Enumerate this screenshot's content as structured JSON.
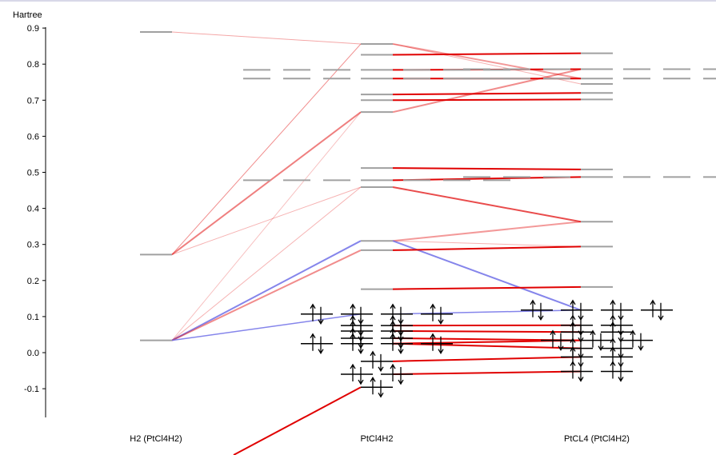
{
  "chart_data": {
    "type": "mo-correlation-diagram",
    "unit_label": "Hartree",
    "ylim": [
      -0.18,
      0.92
    ],
    "yticks": [
      "0.9",
      "0.8",
      "0.7",
      "0.6",
      "0.5",
      "0.4",
      "0.3",
      "0.2",
      "0.1",
      "0.0",
      "-0.1"
    ],
    "ytick_values": [
      0.9,
      0.8,
      0.7,
      0.6,
      0.5,
      0.4,
      0.3,
      0.2,
      0.1,
      0.0,
      -0.1
    ],
    "columns": [
      "H2 (PtCl4H2)",
      "PtCl4H2",
      "PtCL4 (PtCl4H2)"
    ],
    "colors": {
      "virtual": "#a0a0a0",
      "occupied": "#000000",
      "correlation_red": "#e00000",
      "correlation_blue": "#7070e8"
    },
    "levels": {
      "left": [
        {
          "e": 0.889,
          "occ": false
        },
        {
          "e": 0.272,
          "occ": false
        },
        {
          "e": 0.034,
          "occ": false
        }
      ],
      "middle": [
        {
          "e": 0.856,
          "occ": false
        },
        {
          "e": 0.826,
          "occ": false
        },
        {
          "e": 0.784,
          "occ": false,
          "wide": true
        },
        {
          "e": 0.76,
          "occ": false,
          "wide": true
        },
        {
          "e": 0.716,
          "occ": false
        },
        {
          "e": 0.7,
          "occ": false
        },
        {
          "e": 0.667,
          "occ": false
        },
        {
          "e": 0.512,
          "occ": false
        },
        {
          "e": 0.478,
          "occ": false,
          "wide": true
        },
        {
          "e": 0.459,
          "occ": false
        },
        {
          "e": 0.31,
          "occ": false
        },
        {
          "e": 0.284,
          "occ": false
        },
        {
          "e": 0.176,
          "occ": false
        },
        {
          "e": 0.107,
          "occ": true,
          "spread": 4
        },
        {
          "e": 0.075,
          "occ": true,
          "spread": 2
        },
        {
          "e": 0.06,
          "occ": true,
          "spread": 2
        },
        {
          "e": 0.04,
          "occ": true,
          "spread": 2
        },
        {
          "e": 0.025,
          "occ": true,
          "spread": 4
        },
        {
          "e": -0.024,
          "occ": true,
          "spread": 1
        },
        {
          "e": -0.06,
          "occ": true,
          "spread": 2
        },
        {
          "e": -0.096,
          "occ": true,
          "spread": 1
        }
      ],
      "right": [
        {
          "e": 0.83,
          "occ": false
        },
        {
          "e": 0.786,
          "occ": false,
          "wide": true
        },
        {
          "e": 0.76,
          "occ": false,
          "wide": true
        },
        {
          "e": 0.745,
          "occ": false
        },
        {
          "e": 0.72,
          "occ": false
        },
        {
          "e": 0.702,
          "occ": false
        },
        {
          "e": 0.508,
          "occ": false
        },
        {
          "e": 0.487,
          "occ": false,
          "wide": true
        },
        {
          "e": 0.363,
          "occ": false
        },
        {
          "e": 0.294,
          "occ": false
        },
        {
          "e": 0.182,
          "occ": false
        },
        {
          "e": 0.118,
          "occ": true,
          "spread": 4
        },
        {
          "e": 0.076,
          "occ": true,
          "spread": 2
        },
        {
          "e": 0.057,
          "occ": true,
          "spread": 2
        },
        {
          "e": 0.034,
          "occ": true,
          "spread": 3
        },
        {
          "e": 0.012,
          "occ": true,
          "spread": 2
        },
        {
          "e": -0.012,
          "occ": true,
          "spread": 2
        },
        {
          "e": -0.052,
          "occ": true,
          "spread": 2
        }
      ]
    },
    "correlations": [
      {
        "from": [
          "left",
          0.889
        ],
        "to": [
          "middle",
          0.856
        ],
        "color": "red",
        "alpha": 0.35,
        "w": 1
      },
      {
        "from": [
          "left",
          0.272
        ],
        "to": [
          "middle",
          0.856
        ],
        "color": "red",
        "alpha": 0.45,
        "w": 1
      },
      {
        "from": [
          "left",
          0.272
        ],
        "to": [
          "middle",
          0.667
        ],
        "color": "red",
        "alpha": 0.5,
        "w": 2
      },
      {
        "from": [
          "left",
          0.272
        ],
        "to": [
          "middle",
          0.459
        ],
        "color": "red",
        "alpha": 0.3,
        "w": 1
      },
      {
        "from": [
          "left",
          0.034
        ],
        "to": [
          "middle",
          0.667
        ],
        "color": "red",
        "alpha": 0.25,
        "w": 1
      },
      {
        "from": [
          "left",
          0.034
        ],
        "to": [
          "middle",
          0.459
        ],
        "color": "red",
        "alpha": 0.3,
        "w": 1
      },
      {
        "from": [
          "left",
          0.034
        ],
        "to": [
          "middle",
          0.31
        ],
        "color": "blue",
        "alpha": 0.85,
        "w": 2
      },
      {
        "from": [
          "left",
          0.034
        ],
        "to": [
          "middle",
          0.284
        ],
        "color": "red",
        "alpha": 0.45,
        "w": 2
      },
      {
        "from": [
          "left",
          0.034
        ],
        "to": [
          "middle",
          0.107
        ],
        "color": "blue",
        "alpha": 0.85,
        "w": 1.5
      },
      {
        "from": [
          "middle",
          0.856
        ],
        "to": [
          "right",
          0.76
        ],
        "color": "red",
        "alpha": 0.4,
        "w": 2
      },
      {
        "from": [
          "middle",
          0.856
        ],
        "to": [
          "right",
          0.745
        ],
        "color": "red",
        "alpha": 0.3,
        "w": 1
      },
      {
        "from": [
          "middle",
          0.826
        ],
        "to": [
          "right",
          0.83
        ],
        "color": "red",
        "alpha": 1,
        "w": 2
      },
      {
        "from": [
          "middle",
          0.784
        ],
        "to": [
          "right",
          0.786
        ],
        "color": "red",
        "alpha": 1,
        "w": 2
      },
      {
        "from": [
          "middle",
          0.76
        ],
        "to": [
          "right",
          0.76
        ],
        "color": "red",
        "alpha": 1,
        "w": 2
      },
      {
        "from": [
          "middle",
          0.716
        ],
        "to": [
          "right",
          0.72
        ],
        "color": "red",
        "alpha": 1,
        "w": 2
      },
      {
        "from": [
          "middle",
          0.7
        ],
        "to": [
          "right",
          0.702
        ],
        "color": "red",
        "alpha": 1,
        "w": 2
      },
      {
        "from": [
          "middle",
          0.667
        ],
        "to": [
          "right",
          0.786
        ],
        "color": "red",
        "alpha": 0.45,
        "w": 2
      },
      {
        "from": [
          "middle",
          0.512
        ],
        "to": [
          "right",
          0.508
        ],
        "color": "red",
        "alpha": 1,
        "w": 2
      },
      {
        "from": [
          "middle",
          0.478
        ],
        "to": [
          "right",
          0.487
        ],
        "color": "red",
        "alpha": 1,
        "w": 2
      },
      {
        "from": [
          "middle",
          0.459
        ],
        "to": [
          "right",
          0.363
        ],
        "color": "red",
        "alpha": 0.7,
        "w": 2
      },
      {
        "from": [
          "middle",
          0.31
        ],
        "to": [
          "right",
          0.363
        ],
        "color": "red",
        "alpha": 0.4,
        "w": 2
      },
      {
        "from": [
          "middle",
          0.31
        ],
        "to": [
          "right",
          0.294
        ],
        "color": "red",
        "alpha": 0.3,
        "w": 1
      },
      {
        "from": [
          "middle",
          0.31
        ],
        "to": [
          "right",
          0.118
        ],
        "color": "blue",
        "alpha": 0.85,
        "w": 2
      },
      {
        "from": [
          "middle",
          0.284
        ],
        "to": [
          "right",
          0.294
        ],
        "color": "red",
        "alpha": 1,
        "w": 2
      },
      {
        "from": [
          "middle",
          0.176
        ],
        "to": [
          "right",
          0.182
        ],
        "color": "red",
        "alpha": 1,
        "w": 2
      },
      {
        "from": [
          "middle",
          0.107
        ],
        "to": [
          "right",
          0.118
        ],
        "color": "blue",
        "alpha": 0.85,
        "w": 1.5
      },
      {
        "from": [
          "middle",
          0.075
        ],
        "to": [
          "right",
          0.076
        ],
        "color": "red",
        "alpha": 1,
        "w": 2
      },
      {
        "from": [
          "middle",
          0.06
        ],
        "to": [
          "right",
          0.057
        ],
        "color": "red",
        "alpha": 1,
        "w": 2
      },
      {
        "from": [
          "middle",
          0.04
        ],
        "to": [
          "right",
          0.034
        ],
        "color": "red",
        "alpha": 1,
        "w": 2
      },
      {
        "from": [
          "middle",
          0.025
        ],
        "to": [
          "right",
          0.034
        ],
        "color": "red",
        "alpha": 1,
        "w": 2
      },
      {
        "from": [
          "middle",
          0.025
        ],
        "to": [
          "right",
          0.012
        ],
        "color": "red",
        "alpha": 1,
        "w": 2
      },
      {
        "from": [
          "middle",
          -0.024
        ],
        "to": [
          "right",
          -0.012
        ],
        "color": "red",
        "alpha": 1,
        "w": 2
      },
      {
        "from": [
          "middle",
          -0.06
        ],
        "to": [
          "right",
          -0.052
        ],
        "color": "red",
        "alpha": 1,
        "w": 2
      },
      {
        "from": [
          "middle",
          -0.096
        ],
        "to": [
          "left",
          -0.38
        ],
        "color": "red",
        "alpha": 1,
        "w": 2
      }
    ]
  }
}
